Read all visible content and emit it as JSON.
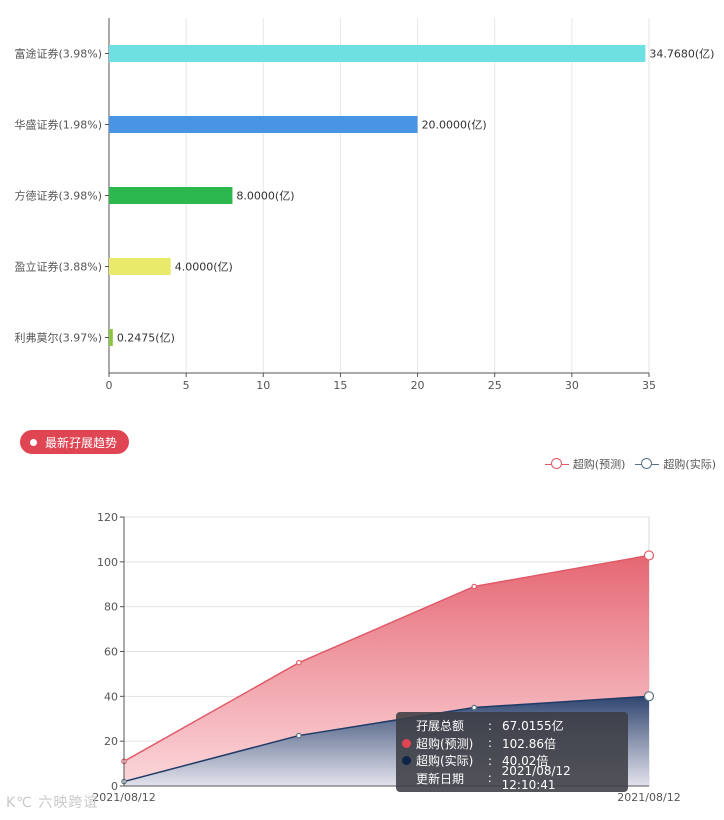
{
  "chart_data": [
    {
      "type": "bar",
      "orientation": "horizontal",
      "categories": [
        "富途证券(3.98%)",
        "华盛证券(1.98%)",
        "方德证券(3.98%)",
        "盈立证券(3.88%)",
        "利弗莫尔(3.97%)"
      ],
      "values": [
        34.768,
        20.0,
        8.0,
        4.0,
        0.2475
      ],
      "value_labels": [
        "34.7680(亿)",
        "20.0000(亿)",
        "8.0000(亿)",
        "4.0000(亿)",
        "0.2475(亿)"
      ],
      "colors": [
        "#6fe0e1",
        "#4a94e4",
        "#2db84f",
        "#e9e96a",
        "#8cc63f"
      ],
      "xlim": [
        0,
        35
      ],
      "xticks": [
        "0",
        "5",
        "10",
        "15",
        "20",
        "25",
        "30",
        "35"
      ],
      "grid": true
    },
    {
      "type": "area",
      "x_labels": [
        "2021/08/12",
        "2021/08/12"
      ],
      "series": [
        {
          "name": "超购(预测)",
          "values": [
            11,
            55,
            89,
            102.86
          ],
          "color": "#e05a68"
        },
        {
          "name": "超购(实际)",
          "values": [
            2,
            22.5,
            35,
            40.02
          ],
          "color": "#1f3a66"
        }
      ],
      "ylim": [
        0,
        120
      ],
      "yticks": [
        "0",
        "20",
        "40",
        "60",
        "80",
        "100",
        "120"
      ],
      "legend_position": "top-right",
      "grid": true
    }
  ],
  "section": {
    "title": "最新孖展趋势"
  },
  "tooltip": {
    "rows": [
      {
        "key": "孖展总额",
        "sep": ":",
        "value": "67.0155亿",
        "color": ""
      },
      {
        "key": "超购(预测)",
        "sep": ":",
        "value": "102.86倍",
        "color": "#e04553"
      },
      {
        "key": "超购(实际)",
        "sep": ":",
        "value": "40.02倍",
        "color": "#0d2547"
      },
      {
        "key": "更新日期",
        "sep": ":",
        "value": "2021/08/12 12:10:41",
        "color": ""
      }
    ]
  },
  "watermark": {
    "text": "K℃ 六映跨谊"
  }
}
